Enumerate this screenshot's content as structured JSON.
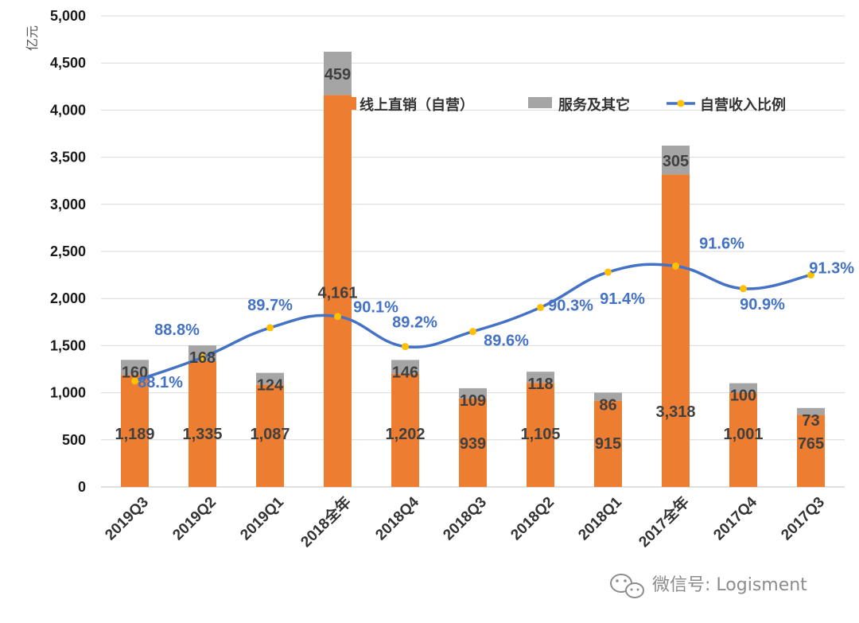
{
  "chart_data": {
    "type": "bar",
    "stacked": true,
    "ylabel": "亿元",
    "ylim": [
      0,
      5000
    ],
    "yticks": [
      0,
      500,
      1000,
      1500,
      2000,
      2500,
      3000,
      3500,
      4000,
      4500,
      5000
    ],
    "ytick_labels": [
      "0",
      "500",
      "1,000",
      "1,500",
      "2,000",
      "2,500",
      "3,000",
      "3,500",
      "4,000",
      "4,500",
      "5,000"
    ],
    "grid": true,
    "legend_position": "top-right",
    "categories": [
      "2019Q3",
      "2019Q2",
      "2019Q1",
      "2018全年",
      "2018Q4",
      "2018Q3",
      "2018Q2",
      "2018Q1",
      "2017全年",
      "2017Q4",
      "2017Q3"
    ],
    "series": [
      {
        "name": "线上直销（自营）",
        "color": "#ed7d31",
        "values": [
          1189,
          1335,
          1087,
          4161,
          1202,
          939,
          1105,
          915,
          3318,
          1001,
          765
        ],
        "labels": [
          "1,189",
          "1,335",
          "1,087",
          "4,161",
          "1,202",
          "939",
          "1,105",
          "915",
          "3,318",
          "1,001",
          "765"
        ]
      },
      {
        "name": "服务及其它",
        "color": "#a5a5a5",
        "values": [
          160,
          168,
          124,
          459,
          146,
          109,
          118,
          86,
          305,
          100,
          73
        ],
        "labels": [
          "160",
          "168",
          "124",
          "459",
          "146",
          "109",
          "118",
          "86",
          "305",
          "100",
          "73"
        ]
      },
      {
        "name": "自营收入比例",
        "type": "line",
        "color": "#4472c4",
        "marker_color": "#ffc000",
        "values": [
          0.881,
          0.888,
          0.897,
          0.901,
          0.892,
          0.896,
          0.903,
          0.914,
          0.916,
          0.909,
          0.913
        ],
        "plot_values": [
          1125,
          1375,
          1690,
          1810,
          1490,
          1650,
          1905,
          2280,
          2345,
          2105,
          2250
        ],
        "labels": [
          "88.1%",
          "88.8%",
          "89.7%",
          "90.1%",
          "89.2%",
          "89.6%",
          "90.3%",
          "91.4%",
          "91.6%",
          "90.9%",
          "91.3%"
        ]
      }
    ]
  },
  "watermark": {
    "icon": "wechat-icon",
    "text": "微信号: Logisment"
  }
}
